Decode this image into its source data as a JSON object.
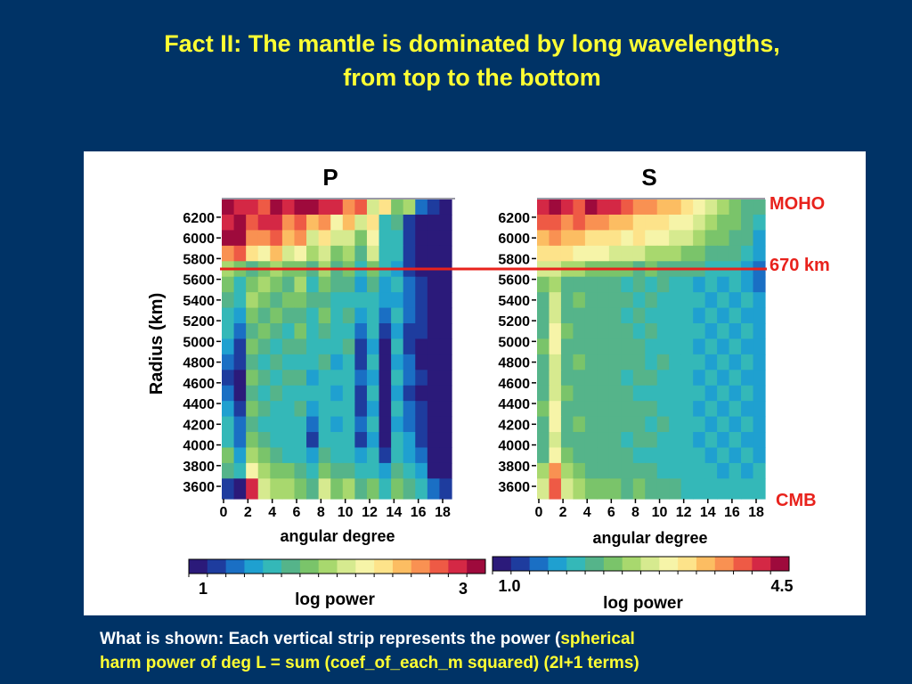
{
  "slide": {
    "title_line1": "Fact II: The mantle is dominated by long wavelengths,",
    "title_line2": "from top to the bottom",
    "caption_line1_white": "What is shown:  Each vertical strip represents the power (",
    "caption_line1_yellow": "spherical",
    "caption_line2_yellow": "harm power of deg L = sum (coef_of_each_m squared) (2l+1 terms)"
  },
  "colors": {
    "background": "#003366",
    "title": "#ffff33",
    "marker_red": "#e8221c",
    "colormap": [
      "#2b1a7a",
      "#1e3c9e",
      "#1a6fc4",
      "#1fa0d0",
      "#34b8b8",
      "#55b48a",
      "#7ac46a",
      "#a8d86e",
      "#d6ea8f",
      "#f6f4a8",
      "#fde38a",
      "#fcbd62",
      "#f99152",
      "#ee5a45",
      "#d42845",
      "#9e0a3c"
    ]
  },
  "annotations": {
    "moho": "MOHO",
    "km670": "670 km",
    "cmb": "CMB"
  },
  "chart_data": [
    {
      "type": "heatmap",
      "title": "P",
      "xlabel": "angular degree",
      "ylabel": "Radius (km)",
      "x_ticks": [
        0,
        2,
        4,
        6,
        8,
        10,
        12,
        14,
        16,
        18
      ],
      "y_ticks": [
        6200,
        6000,
        5800,
        5600,
        5400,
        5200,
        5000,
        4800,
        4600,
        4400,
        4200,
        4000,
        3800,
        3600
      ],
      "xlim": [
        0,
        18
      ],
      "ylim": [
        3480,
        6371
      ],
      "colorbar": {
        "label": "log power",
        "min": 1,
        "max": 3,
        "tick_labels": [
          "1",
          "3"
        ]
      },
      "line_670km_radius": 5700,
      "x": [
        0,
        1,
        2,
        3,
        4,
        5,
        6,
        7,
        8,
        9,
        10,
        11,
        12,
        13,
        14,
        15,
        16,
        17,
        18
      ],
      "rows": [
        {
          "radius": 6300,
          "values": [
            2.9,
            2.8,
            2.85,
            2.7,
            2.9,
            2.8,
            2.95,
            2.9,
            2.8,
            2.85,
            2.6,
            2.7,
            2.1,
            2.3,
            1.8,
            1.9,
            1.3,
            1.2,
            1.1
          ]
        },
        {
          "radius": 6150,
          "values": [
            2.8,
            2.95,
            2.7,
            2.8,
            2.75,
            2.6,
            2.65,
            2.4,
            2.55,
            2.2,
            2.4,
            2.0,
            2.3,
            1.6,
            1.7,
            1.2,
            1.1,
            1.05,
            1.0
          ]
        },
        {
          "radius": 6000,
          "values": [
            2.95,
            2.9,
            2.6,
            2.5,
            2.65,
            2.4,
            2.5,
            2.1,
            2.3,
            2.0,
            2.1,
            1.8,
            2.2,
            1.5,
            1.6,
            1.2,
            1.1,
            1.05,
            1.0
          ]
        },
        {
          "radius": 5850,
          "values": [
            2.6,
            2.7,
            2.3,
            2.2,
            2.4,
            2.1,
            2.2,
            1.9,
            2.1,
            1.8,
            1.9,
            1.7,
            2.0,
            1.5,
            1.5,
            1.2,
            1.1,
            1.05,
            1.0
          ]
        },
        {
          "radius": 5700,
          "values": [
            1.9,
            1.8,
            1.7,
            1.8,
            1.9,
            1.8,
            1.8,
            1.7,
            1.9,
            1.7,
            1.8,
            1.5,
            1.8,
            1.5,
            1.4,
            1.2,
            1.1,
            1.05,
            1.0
          ]
        },
        {
          "radius": 5550,
          "values": [
            1.8,
            1.6,
            1.8,
            1.9,
            1.8,
            1.7,
            1.9,
            1.6,
            1.8,
            1.7,
            1.7,
            1.4,
            1.7,
            1.4,
            1.5,
            1.3,
            1.2,
            1.05,
            1.0
          ]
        },
        {
          "radius": 5400,
          "values": [
            1.7,
            1.5,
            1.9,
            1.8,
            1.7,
            1.8,
            1.8,
            1.7,
            1.7,
            1.6,
            1.6,
            1.5,
            1.6,
            1.4,
            1.4,
            1.3,
            1.2,
            1.05,
            1.0
          ]
        },
        {
          "radius": 5250,
          "values": [
            1.6,
            1.4,
            1.8,
            1.7,
            1.8,
            1.7,
            1.7,
            1.6,
            1.8,
            1.5,
            1.7,
            1.4,
            1.5,
            1.3,
            1.5,
            1.3,
            1.2,
            1.05,
            1.0
          ]
        },
        {
          "radius": 5100,
          "values": [
            1.5,
            1.3,
            1.7,
            1.8,
            1.7,
            1.6,
            1.8,
            1.5,
            1.7,
            1.6,
            1.6,
            1.3,
            1.5,
            1.2,
            1.4,
            1.2,
            1.2,
            1.05,
            1.0
          ]
        },
        {
          "radius": 4950,
          "values": [
            1.4,
            1.2,
            1.8,
            1.7,
            1.6,
            1.7,
            1.7,
            1.6,
            1.6,
            1.5,
            1.7,
            1.2,
            1.4,
            1.1,
            1.5,
            1.2,
            1.1,
            1.05,
            1.0
          ]
        },
        {
          "radius": 4800,
          "values": [
            1.3,
            1.2,
            1.7,
            1.6,
            1.7,
            1.6,
            1.6,
            1.5,
            1.7,
            1.4,
            1.6,
            1.2,
            1.5,
            1.05,
            1.4,
            1.3,
            1.1,
            1.05,
            1.0
          ]
        },
        {
          "radius": 4650,
          "values": [
            1.2,
            1.1,
            1.8,
            1.7,
            1.6,
            1.7,
            1.7,
            1.4,
            1.6,
            1.5,
            1.5,
            1.3,
            1.4,
            1.05,
            1.5,
            1.3,
            1.2,
            1.05,
            1.0
          ]
        },
        {
          "radius": 4500,
          "values": [
            1.3,
            1.1,
            1.7,
            1.6,
            1.7,
            1.6,
            1.6,
            1.5,
            1.5,
            1.4,
            1.6,
            1.2,
            1.5,
            1.1,
            1.4,
            1.2,
            1.1,
            1.05,
            1.0
          ]
        },
        {
          "radius": 4350,
          "values": [
            1.4,
            1.2,
            1.8,
            1.7,
            1.6,
            1.5,
            1.7,
            1.4,
            1.6,
            1.5,
            1.5,
            1.2,
            1.4,
            1.05,
            1.5,
            1.3,
            1.2,
            1.05,
            1.0
          ]
        },
        {
          "radius": 4200,
          "values": [
            1.5,
            1.3,
            1.7,
            1.6,
            1.5,
            1.6,
            1.6,
            1.3,
            1.5,
            1.4,
            1.6,
            1.3,
            1.5,
            1.1,
            1.4,
            1.3,
            1.2,
            1.05,
            1.0
          ]
        },
        {
          "radius": 4050,
          "values": [
            1.6,
            1.3,
            1.8,
            1.7,
            1.6,
            1.5,
            1.5,
            1.2,
            1.6,
            1.5,
            1.5,
            1.2,
            1.4,
            1.1,
            1.5,
            1.4,
            1.2,
            1.05,
            1.0
          ]
        },
        {
          "radius": 3900,
          "values": [
            1.8,
            1.4,
            1.9,
            1.8,
            1.7,
            1.6,
            1.6,
            1.4,
            1.7,
            1.6,
            1.6,
            1.4,
            1.5,
            1.2,
            1.6,
            1.4,
            1.3,
            1.05,
            1.0
          ]
        },
        {
          "radius": 3750,
          "values": [
            1.7,
            1.5,
            2.2,
            1.9,
            1.8,
            1.8,
            1.7,
            1.5,
            1.8,
            1.7,
            1.7,
            1.6,
            1.6,
            1.4,
            1.7,
            1.5,
            1.4,
            1.1,
            1.0
          ]
        },
        {
          "radius": 3600,
          "values": [
            1.2,
            1.1,
            2.8,
            2.0,
            1.9,
            1.9,
            1.8,
            1.7,
            2.1,
            1.8,
            1.9,
            1.7,
            1.8,
            1.6,
            1.8,
            1.7,
            1.6,
            1.3,
            1.2
          ]
        }
      ]
    },
    {
      "type": "heatmap",
      "title": "S",
      "xlabel": "angular degree",
      "ylabel": "",
      "x_ticks": [
        0,
        2,
        4,
        6,
        8,
        10,
        12,
        14,
        16,
        18
      ],
      "y_ticks": [
        6200,
        6000,
        5800,
        5600,
        5400,
        5200,
        5000,
        4800,
        4600,
        4400,
        4200,
        4000,
        3800,
        3600
      ],
      "xlim": [
        0,
        18
      ],
      "ylim": [
        3480,
        6371
      ],
      "colorbar": {
        "label": "log power",
        "min": 1.0,
        "max": 4.5,
        "tick_labels": [
          "1.0",
          "4.5"
        ]
      },
      "line_670km_radius": 5700,
      "x": [
        0,
        1,
        2,
        3,
        4,
        5,
        6,
        7,
        8,
        9,
        10,
        11,
        12,
        13,
        14,
        15,
        16,
        17,
        18
      ],
      "rows": [
        {
          "radius": 6300,
          "values": [
            4.1,
            4.3,
            4.2,
            4.0,
            4.3,
            4.2,
            4.1,
            4.0,
            3.7,
            3.8,
            3.5,
            3.6,
            3.3,
            3.1,
            2.8,
            2.6,
            2.5,
            2.3,
            2.1
          ]
        },
        {
          "radius": 6150,
          "values": [
            3.9,
            4.0,
            3.8,
            3.9,
            3.7,
            3.8,
            3.6,
            3.5,
            3.4,
            3.3,
            3.2,
            3.0,
            3.0,
            2.8,
            2.7,
            2.5,
            2.4,
            2.2,
            2.0
          ]
        },
        {
          "radius": 6000,
          "values": [
            3.6,
            3.7,
            3.5,
            3.6,
            3.4,
            3.3,
            3.3,
            3.1,
            3.2,
            3.0,
            3.0,
            2.9,
            2.8,
            2.7,
            2.5,
            2.4,
            2.3,
            2.1,
            1.8
          ]
        },
        {
          "radius": 5850,
          "values": [
            3.3,
            3.4,
            3.2,
            3.1,
            3.1,
            3.0,
            2.9,
            2.9,
            2.8,
            2.7,
            2.7,
            2.6,
            2.5,
            2.4,
            2.3,
            2.2,
            2.1,
            2.0,
            1.7
          ]
        },
        {
          "radius": 5700,
          "values": [
            2.8,
            2.9,
            2.7,
            2.6,
            2.5,
            2.4,
            2.4,
            2.5,
            2.3,
            2.4,
            2.2,
            2.3,
            2.1,
            2.1,
            2.0,
            1.9,
            1.9,
            1.8,
            1.5
          ]
        },
        {
          "radius": 5550,
          "values": [
            2.4,
            2.7,
            2.3,
            2.2,
            2.3,
            2.1,
            2.2,
            2.0,
            2.1,
            2.0,
            2.1,
            1.9,
            2.0,
            1.8,
            1.9,
            1.8,
            1.9,
            1.8,
            1.6
          ]
        },
        {
          "radius": 5400,
          "values": [
            2.3,
            2.8,
            2.2,
            2.4,
            2.2,
            2.2,
            2.1,
            2.1,
            2.0,
            2.1,
            1.9,
            2.0,
            1.9,
            1.9,
            1.8,
            1.9,
            1.8,
            1.9,
            1.7
          ]
        },
        {
          "radius": 5250,
          "values": [
            2.2,
            2.9,
            2.3,
            2.3,
            2.1,
            2.3,
            2.2,
            2.0,
            2.1,
            2.0,
            2.0,
            1.9,
            2.0,
            1.8,
            1.9,
            1.8,
            1.9,
            1.8,
            1.7
          ]
        },
        {
          "radius": 5100,
          "values": [
            2.3,
            3.0,
            2.4,
            2.2,
            2.2,
            2.2,
            2.3,
            2.1,
            2.0,
            2.1,
            1.9,
            2.0,
            1.9,
            1.9,
            1.8,
            1.9,
            1.8,
            1.9,
            1.8
          ]
        },
        {
          "radius": 4950,
          "values": [
            2.4,
            3.0,
            2.3,
            2.3,
            2.3,
            2.1,
            2.2,
            2.2,
            2.1,
            2.0,
            2.0,
            1.9,
            2.0,
            1.8,
            1.9,
            1.8,
            1.9,
            1.8,
            1.8
          ]
        },
        {
          "radius": 4800,
          "values": [
            2.3,
            2.9,
            2.2,
            2.4,
            2.2,
            2.2,
            2.1,
            2.1,
            2.2,
            2.0,
            2.1,
            2.0,
            1.9,
            1.9,
            1.8,
            1.9,
            1.8,
            1.9,
            1.8
          ]
        },
        {
          "radius": 4650,
          "values": [
            2.2,
            2.8,
            2.3,
            2.3,
            2.1,
            2.3,
            2.2,
            2.0,
            2.1,
            2.1,
            2.0,
            1.9,
            2.0,
            1.8,
            1.9,
            1.8,
            1.9,
            1.8,
            1.8
          ]
        },
        {
          "radius": 4500,
          "values": [
            2.3,
            2.9,
            2.4,
            2.2,
            2.2,
            2.2,
            2.3,
            2.1,
            2.0,
            2.0,
            1.9,
            2.0,
            1.9,
            1.9,
            1.8,
            1.9,
            1.8,
            1.9,
            1.8
          ]
        },
        {
          "radius": 4350,
          "values": [
            2.4,
            3.0,
            2.3,
            2.3,
            2.3,
            2.1,
            2.2,
            2.2,
            2.1,
            2.1,
            2.0,
            1.9,
            2.0,
            1.8,
            1.9,
            1.8,
            1.9,
            1.8,
            1.8
          ]
        },
        {
          "radius": 4200,
          "values": [
            2.3,
            3.0,
            2.2,
            2.4,
            2.2,
            2.2,
            2.1,
            2.1,
            2.2,
            2.0,
            2.1,
            2.0,
            1.9,
            1.9,
            1.8,
            1.9,
            1.8,
            1.9,
            1.8
          ]
        },
        {
          "radius": 4050,
          "values": [
            2.2,
            2.9,
            2.3,
            2.3,
            2.1,
            2.3,
            2.2,
            2.0,
            2.1,
            2.1,
            2.0,
            1.9,
            2.0,
            1.8,
            1.9,
            1.8,
            1.9,
            1.8,
            1.8
          ]
        },
        {
          "radius": 3900,
          "values": [
            2.3,
            3.0,
            2.5,
            2.3,
            2.2,
            2.2,
            2.3,
            2.1,
            2.0,
            2.0,
            1.9,
            2.0,
            1.9,
            1.9,
            1.8,
            1.9,
            1.8,
            1.9,
            1.8
          ]
        },
        {
          "radius": 3750,
          "values": [
            2.6,
            3.8,
            2.7,
            2.4,
            2.3,
            2.3,
            2.2,
            2.2,
            2.1,
            2.1,
            2.0,
            1.9,
            2.0,
            1.9,
            1.9,
            1.8,
            1.9,
            1.8,
            1.9
          ]
        },
        {
          "radius": 3600,
          "values": [
            2.8,
            4.0,
            2.9,
            2.6,
            2.5,
            2.5,
            2.4,
            2.3,
            2.4,
            2.2,
            2.1,
            2.1,
            2.0,
            2.0,
            1.9,
            1.9,
            2.0,
            1.9,
            2.0
          ]
        }
      ]
    }
  ]
}
